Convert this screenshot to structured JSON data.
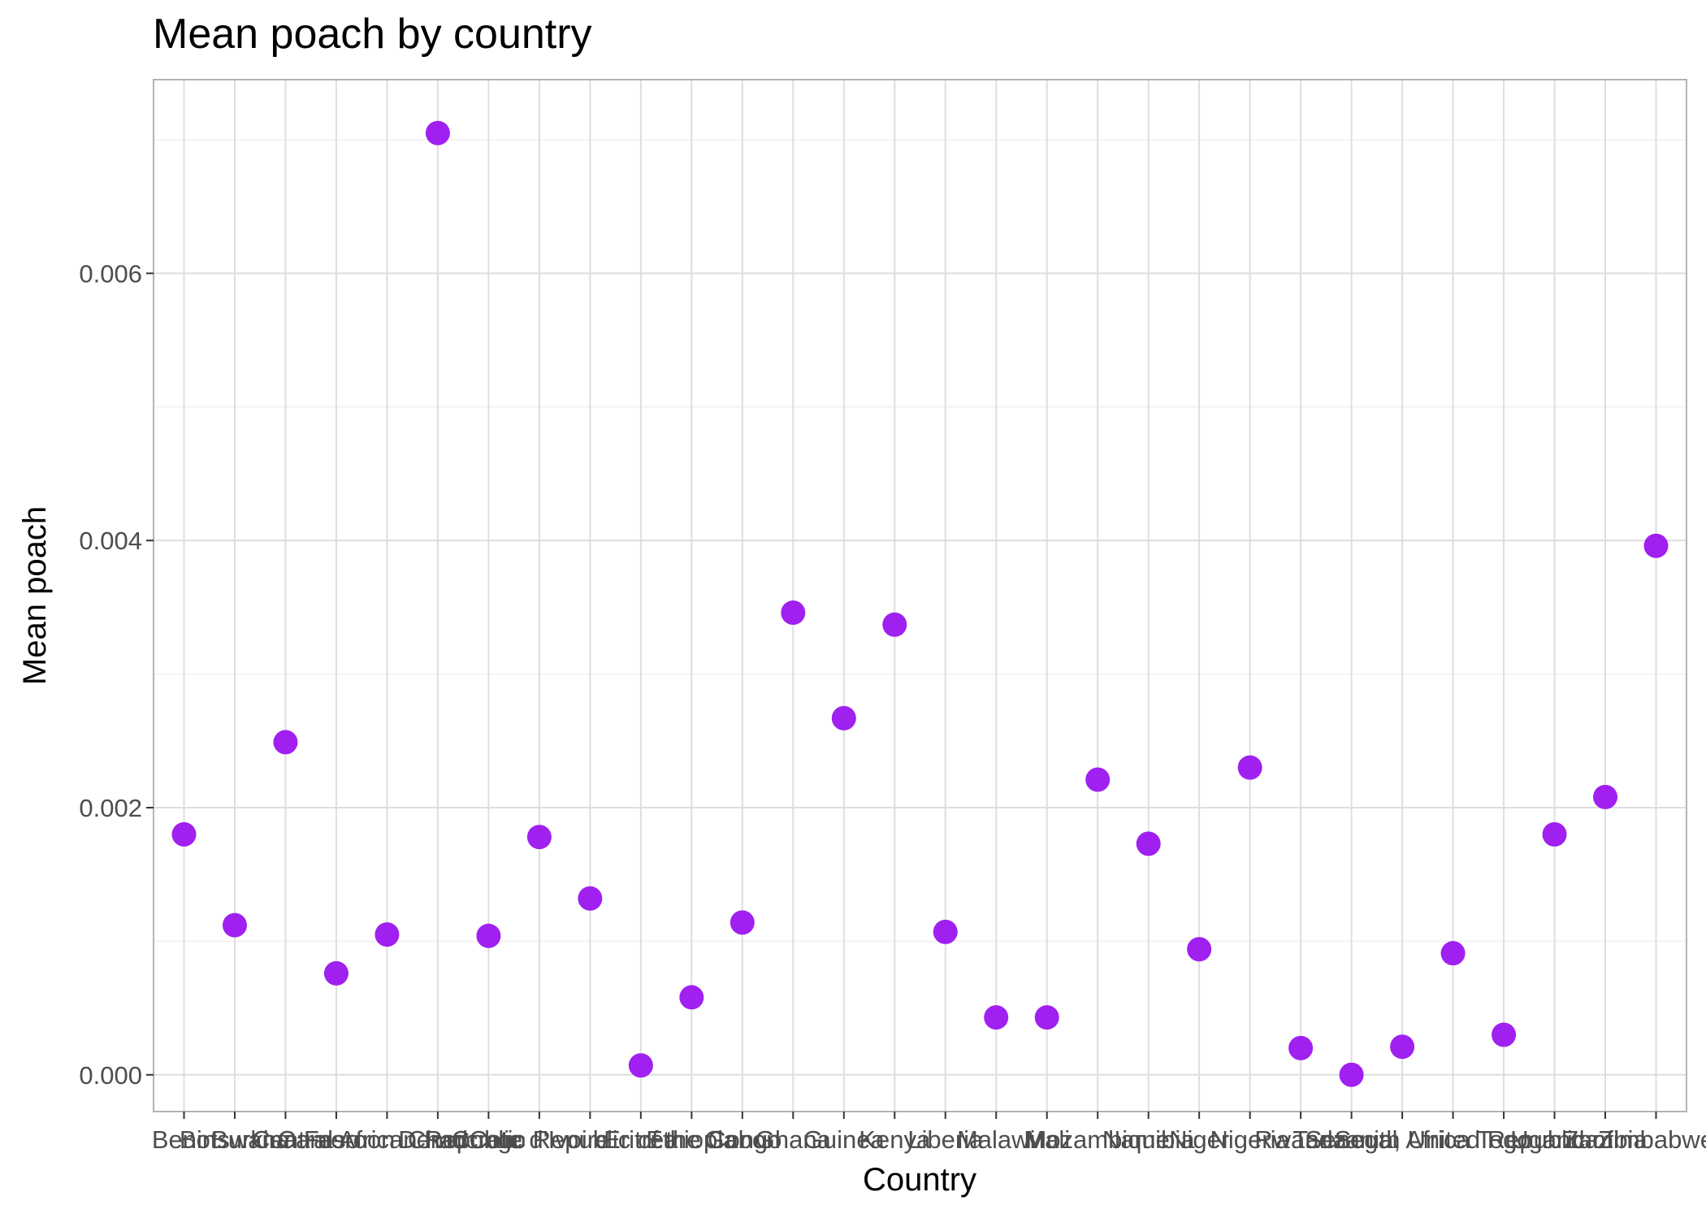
{
  "chart_data": {
    "type": "scatter",
    "title": "Mean poach by country",
    "xlabel": "Country",
    "ylabel": "Mean poach",
    "categories": [
      "Benin",
      "Botswana",
      "Burkina Faso",
      "Cameroon",
      "Central African Republic",
      "Chad",
      "Congo",
      "Cote d'Ivoire",
      "Democratic Republic of the Congo",
      "Eritrea",
      "Ethiopia",
      "Gabon",
      "Ghana",
      "Guinea",
      "Kenya",
      "Liberia",
      "Malawi",
      "Mali",
      "Mozambique",
      "Namibia",
      "Niger",
      "Nigeria",
      "Rwanda",
      "Senegal",
      "South Africa",
      "Tanzania, United Republic of",
      "Togo",
      "Uganda",
      "Zambia",
      "Zimbabwe"
    ],
    "values": [
      0.0018,
      0.00112,
      0.00249,
      0.00076,
      0.00105,
      0.00705,
      0.00104,
      0.00178,
      0.00132,
      7e-05,
      0.00058,
      0.00114,
      0.00346,
      0.00267,
      0.00337,
      0.00107,
      0.00043,
      0.00043,
      0.00221,
      0.00173,
      0.00094,
      0.0023,
      0.0002,
      0.0,
      0.00021,
      0.00091,
      0.0003,
      0.0018,
      0.00208,
      0.00396
    ],
    "y_ticks": [
      "0.000",
      "0.002",
      "0.004",
      "0.006"
    ],
    "y_tick_values": [
      0,
      0.002,
      0.004,
      0.006
    ],
    "ylim": [
      -0.000275,
      0.00745
    ],
    "point_color": "#A020F0",
    "grid": true,
    "legend": "none"
  }
}
